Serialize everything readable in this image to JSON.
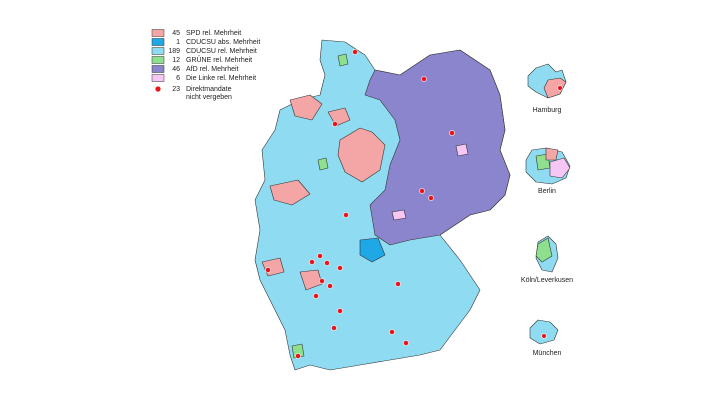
{
  "legend": [
    {
      "count": 45,
      "label": "SPD rel. Mehrheit",
      "color": "#f4a6a6"
    },
    {
      "count": 1,
      "label": "CDUCSU abs. Mehrheit",
      "color": "#1fa8e6"
    },
    {
      "count": 189,
      "label": "CDUCSU rel. Mehrheit",
      "color": "#8fdcf2"
    },
    {
      "count": 12,
      "label": "GRÜNE rel. Mehrheit",
      "color": "#8ee08e"
    },
    {
      "count": 46,
      "label": "AfD rel. Mehrheit",
      "color": "#8a85cc"
    },
    {
      "count": 6,
      "label": "Die Linke rel. Mehrheit",
      "color": "#f6c6f4"
    }
  ],
  "unassigned": {
    "count": 23,
    "label": [
      "Direktmandate",
      "nicht vergeben"
    ],
    "color": "#e8141b"
  },
  "insets": [
    "Hamburg",
    "Berlin",
    "Köln/Leverkusen",
    "München"
  ]
}
